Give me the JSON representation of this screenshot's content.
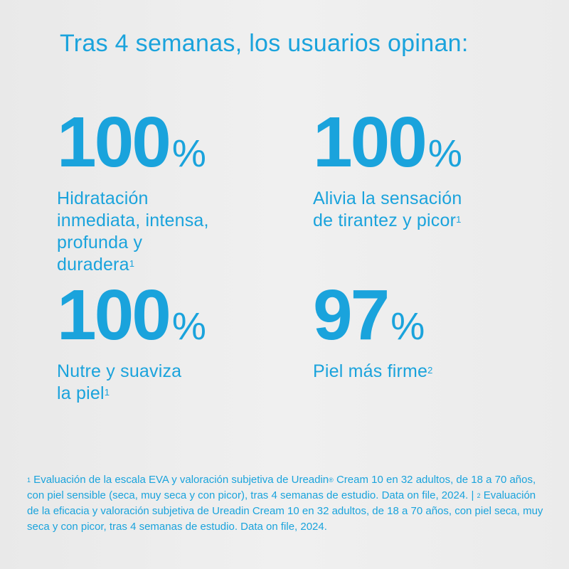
{
  "title": "Tras 4 semanas, los usuarios opinan:",
  "accent_color": "#1aa3dc",
  "stats": [
    {
      "value": "100",
      "unit": "%",
      "lines": [
        "Hidratación",
        "inmediata, intensa,",
        "profunda y",
        "duradera"
      ],
      "ref": "1"
    },
    {
      "value": "100",
      "unit": "%",
      "lines": [
        "Alivia la sensación",
        "de tirantez y picor"
      ],
      "ref": "1"
    },
    {
      "value": "100",
      "unit": "%",
      "lines": [
        "Nutre y suaviza",
        "la piel"
      ],
      "ref": "1"
    },
    {
      "value": "97",
      "unit": "%",
      "lines": [
        "Piel más firme"
      ],
      "ref": "2"
    }
  ],
  "footnotes": {
    "ref1": "1",
    "text1a": " Evaluación de la escala EVA y valoración subjetiva de Ureadin",
    "reg": "®",
    "text1b": " Cream 10 en 32 adultos, de 18 a 70 años, con piel sensible (seca, muy seca y con picor), tras 4 semanas de estudio. Data on file, 2024. | ",
    "ref2": "2",
    "text2": " Evaluación de la eficacia y valoración subjetiva de Ureadin Cream 10 en 32 adultos, de 18 a 70 años, con piel seca, muy seca y con picor, tras 4 semanas de estudio. Data on file, 2024."
  }
}
